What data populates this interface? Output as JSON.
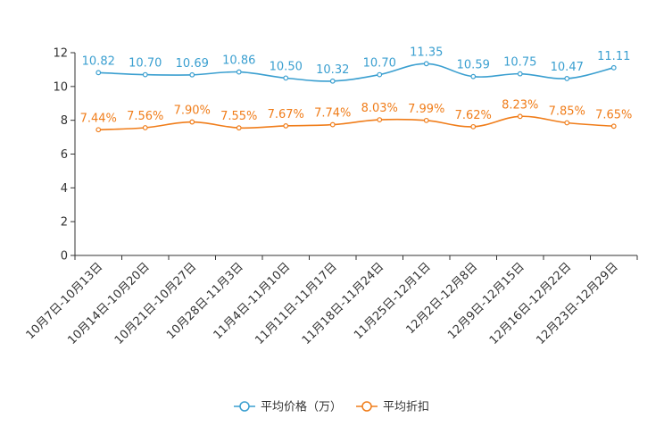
{
  "chart_data": {
    "type": "line",
    "title": "",
    "xlabel": "",
    "ylabel": "",
    "ylim": [
      0,
      12
    ],
    "yticks": [
      0,
      2,
      4,
      6,
      8,
      10,
      12
    ],
    "grid": false,
    "legend_position": "bottom-center",
    "categories": [
      "10月7日-10月13日",
      "10月14日-10月20日",
      "10月21日-10月27日",
      "10月28日-11月3日",
      "11月4日-11月10日",
      "11月11日-11月17日",
      "11月18日-11月24日",
      "11月25日-12月1日",
      "12月2日-12月8日",
      "12月9日-12月15日",
      "12月16日-12月22日",
      "12月23日-12月29日"
    ],
    "series": [
      {
        "name": "平均价格（万）",
        "color": "#3a9fd0",
        "values": [
          10.82,
          10.7,
          10.69,
          10.86,
          10.5,
          10.32,
          10.7,
          11.35,
          10.59,
          10.75,
          10.47,
          11.11
        ],
        "labels": [
          "10.82",
          "10.70",
          "10.69",
          "10.86",
          "10.50",
          "10.32",
          "10.70",
          "11.35",
          "10.59",
          "10.75",
          "10.47",
          "11.11"
        ]
      },
      {
        "name": "平均折扣",
        "color": "#f07d1a",
        "values": [
          7.44,
          7.56,
          7.9,
          7.55,
          7.67,
          7.74,
          8.03,
          7.99,
          7.62,
          8.23,
          7.85,
          7.65
        ],
        "labels": [
          "7.44%",
          "7.56%",
          "7.90%",
          "7.55%",
          "7.67%",
          "7.74%",
          "8.03%",
          "7.99%",
          "7.62%",
          "8.23%",
          "7.85%",
          "7.65%"
        ]
      }
    ]
  }
}
